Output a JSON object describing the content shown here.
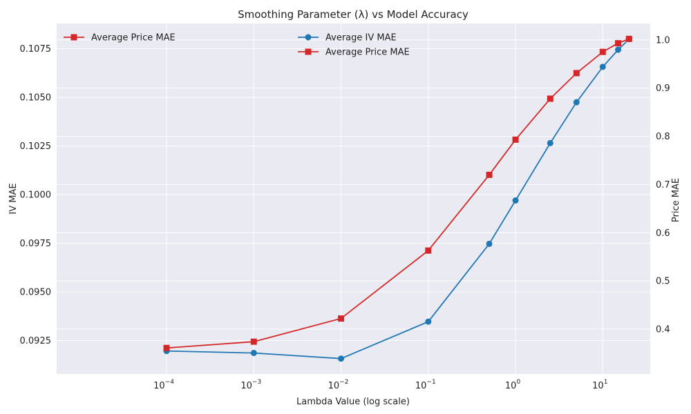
{
  "chart_data": {
    "type": "line",
    "title": "Smoothing Parameter (λ) vs Model Accuracy",
    "xlabel": "Lambda Value (log scale)",
    "ylabel_left": "IV MAE",
    "ylabel_right": "Price MAE",
    "x_scale": "log",
    "x": [
      0.0001,
      0.001,
      0.01,
      0.1,
      0.5,
      1,
      2.5,
      5,
      10,
      15,
      20
    ],
    "xlim": [
      5.5e-06,
      35
    ],
    "x_ticks": [
      {
        "value": 0.0001,
        "base": "10",
        "exp": "−4"
      },
      {
        "value": 0.001,
        "base": "10",
        "exp": "−3"
      },
      {
        "value": 0.01,
        "base": "10",
        "exp": "−2"
      },
      {
        "value": 0.1,
        "base": "10",
        "exp": "−1"
      },
      {
        "value": 1,
        "base": "10",
        "exp": "0"
      },
      {
        "value": 10,
        "base": "10",
        "exp": "1"
      }
    ],
    "y_left": {
      "lim": [
        0.09078,
        0.1088
      ],
      "ticks": [
        "0.0925",
        "0.0950",
        "0.0975",
        "0.1000",
        "0.1025",
        "0.1050",
        "0.1075"
      ],
      "tick_values": [
        0.0925,
        0.095,
        0.0975,
        0.1,
        0.1025,
        0.105,
        0.1075
      ]
    },
    "y_right": {
      "lim": [
        0.307,
        1.034
      ],
      "ticks": [
        "0.4",
        "0.5",
        "0.6",
        "0.7",
        "0.8",
        "0.9",
        "1.0"
      ],
      "tick_values": [
        0.4,
        0.5,
        0.6,
        0.7,
        0.8,
        0.9,
        1.0
      ]
    },
    "series": [
      {
        "name": "Average IV MAE",
        "axis": "left",
        "color": "#1f77b4",
        "marker": "circle",
        "values": [
          0.09196,
          0.09186,
          0.09157,
          0.09347,
          0.09747,
          0.0997,
          0.10265,
          0.10475,
          0.10657,
          0.10745,
          0.108
        ]
      },
      {
        "name": "Average Price MAE",
        "axis": "right",
        "color": "#d62728",
        "marker": "square",
        "values": [
          0.361,
          0.374,
          0.422,
          0.563,
          0.72,
          0.793,
          0.878,
          0.931,
          0.975,
          0.993,
          1.002
        ]
      }
    ],
    "legends": [
      {
        "position": "top-left",
        "entries": [
          "Average Price MAE"
        ]
      },
      {
        "position": "top-center",
        "entries": [
          "Average IV MAE",
          "Average Price MAE"
        ]
      }
    ],
    "grid": true,
    "colors": {
      "background": "#eaeaf2",
      "grid": "#ffffff",
      "left_axis_label": "#1f77b4",
      "right_axis_label": "#d62728"
    }
  }
}
